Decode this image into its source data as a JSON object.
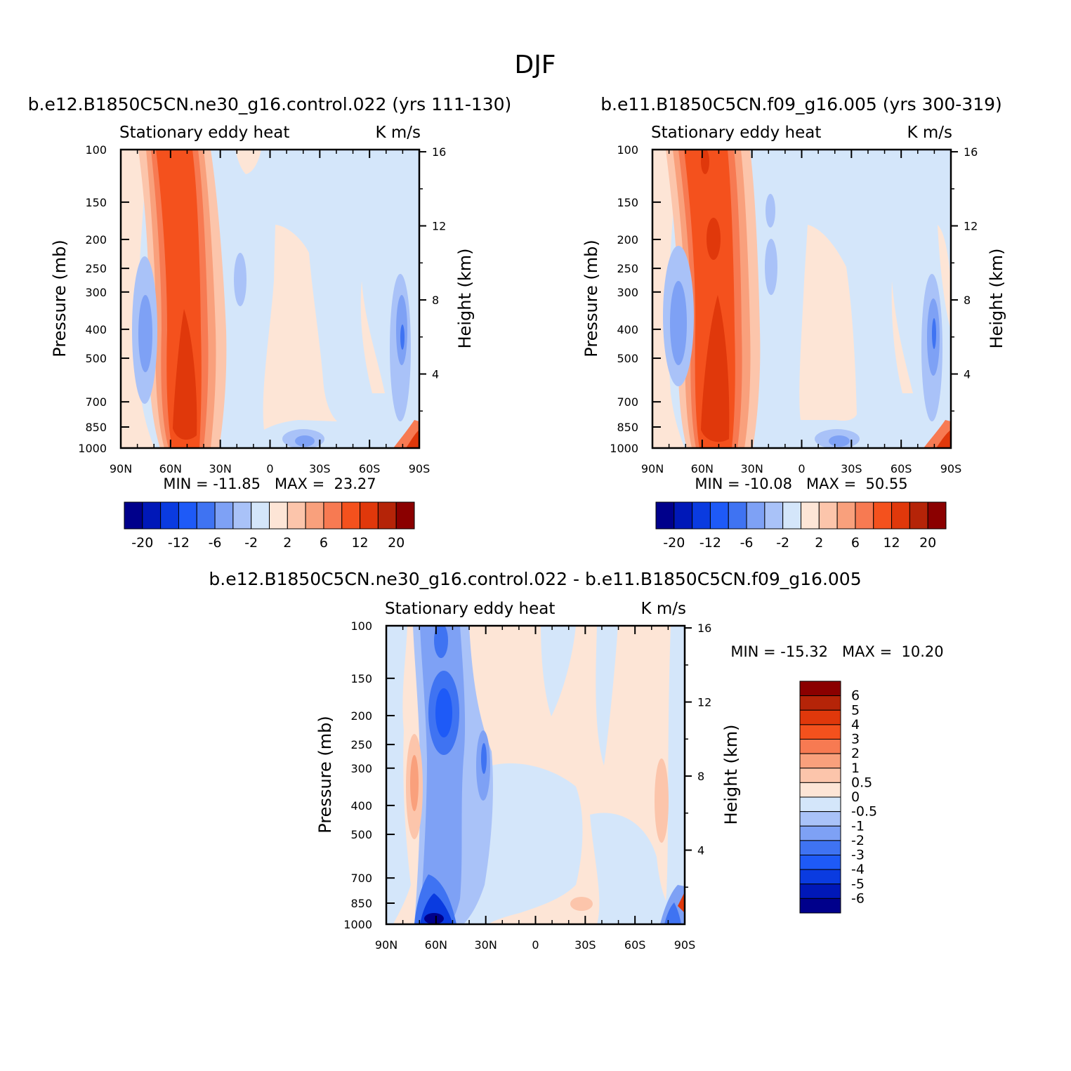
{
  "figure_title": "DJF",
  "chart_data": [
    {
      "type": "heatmap",
      "id": "panel1",
      "title": "b.e12.B1850C5CN.ne30_g16.control.022 (yrs 111-130)",
      "left_string": "Stationary eddy heat",
      "right_string": "K m/s",
      "ylabel": "Pressure (mb)",
      "ylabel_right": "Height (km)",
      "x_ticks": [
        "90N",
        "60N",
        "30N",
        "0",
        "30S",
        "60S",
        "90S"
      ],
      "y_ticks": [
        "100",
        "150",
        "200",
        "250",
        "300",
        "400",
        "500",
        "700",
        "850",
        "1000"
      ],
      "y2_ticks": [
        "16",
        "12",
        "8",
        "4"
      ],
      "xlim": [
        90,
        -90
      ],
      "ylim": [
        1000,
        100
      ],
      "min_max_text": "MIN = -11.85   MAX =  23.27",
      "colorbar_labels": [
        "-20",
        "-12",
        "-6",
        "-2",
        "2",
        "6",
        "12",
        "20"
      ],
      "colorbar_levels": [
        -20,
        -16,
        -12,
        -8,
        -6,
        -4,
        -2,
        0,
        2,
        4,
        6,
        8,
        12,
        16,
        20
      ],
      "colors": [
        "#00008b",
        "#0018b8",
        "#0a3be0",
        "#1e5af7",
        "#3f73f2",
        "#7ea1f5",
        "#a9c2f8",
        "#d4e6fa",
        "#fde5d6",
        "#fcc5ab",
        "#f9a07c",
        "#f77a52",
        "#f4511d",
        "#e0380b",
        "#b52408",
        "#8b0000"
      ]
    },
    {
      "type": "heatmap",
      "id": "panel2",
      "title": "b.e11.B1850C5CN.f09_g16.005 (yrs 300-319)",
      "left_string": "Stationary eddy heat",
      "right_string": "K m/s",
      "ylabel": "Pressure (mb)",
      "ylabel_right": "Height (km)",
      "x_ticks": [
        "90N",
        "60N",
        "30N",
        "0",
        "30S",
        "60S",
        "90S"
      ],
      "y_ticks": [
        "100",
        "150",
        "200",
        "250",
        "300",
        "400",
        "500",
        "700",
        "850",
        "1000"
      ],
      "y2_ticks": [
        "16",
        "12",
        "8",
        "4"
      ],
      "xlim": [
        90,
        -90
      ],
      "ylim": [
        1000,
        100
      ],
      "min_max_text": "MIN = -10.08   MAX =  50.55",
      "colorbar_labels": [
        "-20",
        "-12",
        "-6",
        "-2",
        "2",
        "6",
        "12",
        "20"
      ],
      "colorbar_levels": [
        -20,
        -16,
        -12,
        -8,
        -6,
        -4,
        -2,
        0,
        2,
        4,
        6,
        8,
        12,
        16,
        20
      ],
      "colors": [
        "#00008b",
        "#0018b8",
        "#0a3be0",
        "#1e5af7",
        "#3f73f2",
        "#7ea1f5",
        "#a9c2f8",
        "#d4e6fa",
        "#fde5d6",
        "#fcc5ab",
        "#f9a07c",
        "#f77a52",
        "#f4511d",
        "#e0380b",
        "#b52408",
        "#8b0000"
      ]
    },
    {
      "type": "heatmap",
      "id": "panel3",
      "title": "b.e12.B1850C5CN.ne30_g16.control.022 - b.e11.B1850C5CN.f09_g16.005",
      "left_string": "Stationary eddy heat",
      "right_string": "K m/s",
      "ylabel": "Pressure (mb)",
      "ylabel_right": "Height (km)",
      "x_ticks": [
        "90N",
        "60N",
        "30N",
        "0",
        "30S",
        "60S",
        "90S"
      ],
      "y_ticks": [
        "100",
        "150",
        "200",
        "250",
        "300",
        "400",
        "500",
        "700",
        "850",
        "1000"
      ],
      "y2_ticks": [
        "16",
        "12",
        "8",
        "4"
      ],
      "xlim": [
        90,
        -90
      ],
      "ylim": [
        1000,
        100
      ],
      "min_max_text": "MIN = -15.32   MAX =  10.20",
      "colorbar_labels": [
        "6",
        "5",
        "4",
        "3",
        "2",
        "1",
        "0.5",
        "0",
        "-0.5",
        "-1",
        "-2",
        "-3",
        "-4",
        "-5",
        "-6"
      ],
      "colorbar_levels": [
        6,
        5,
        4,
        3,
        2,
        1,
        0.5,
        0,
        -0.5,
        -1,
        -2,
        -3,
        -4,
        -5,
        -6
      ],
      "colors": [
        "#8b0000",
        "#b52408",
        "#e0380b",
        "#f4511d",
        "#f77a52",
        "#f9a07c",
        "#fcc5ab",
        "#fde5d6",
        "#d4e6fa",
        "#a9c2f8",
        "#7ea1f5",
        "#3f73f2",
        "#1e5af7",
        "#0a3be0",
        "#0018b8",
        "#00008b"
      ]
    }
  ]
}
